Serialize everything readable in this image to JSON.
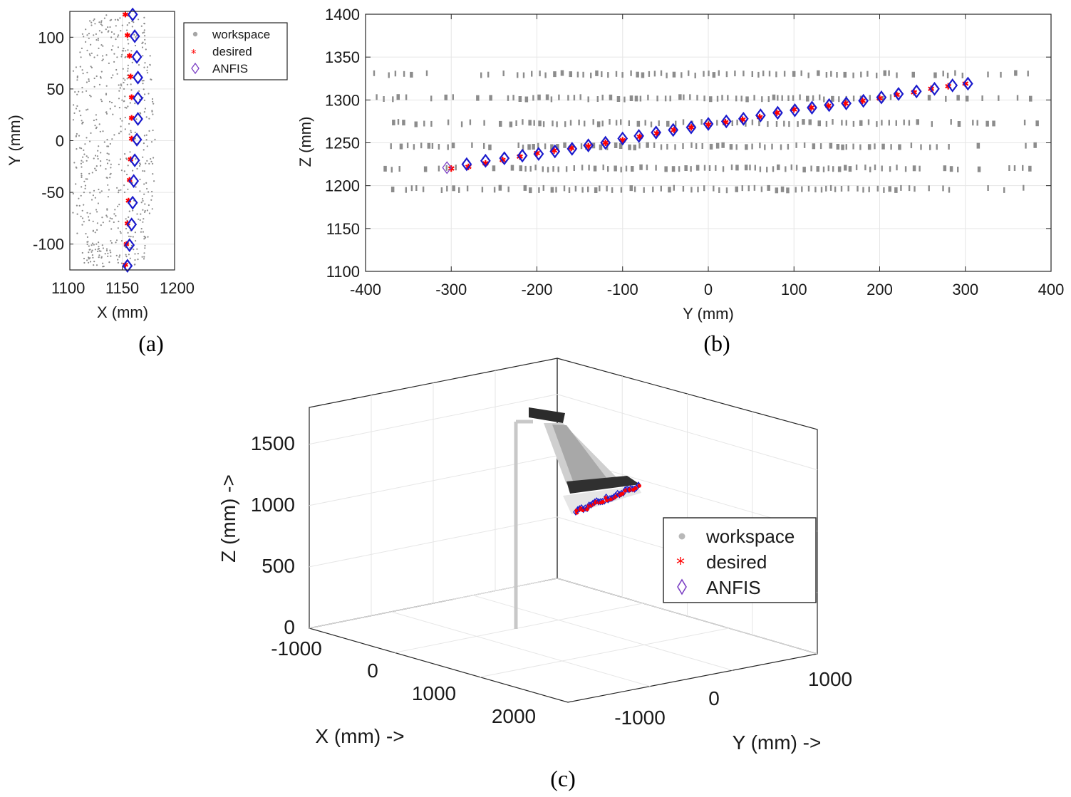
{
  "colors": {
    "workspace": "#8c8c8c",
    "desired": "#ff0000",
    "anfis": "#1a1acc",
    "anfis_legend": "#7b3fc4",
    "grid": "#e6e6e6",
    "axis": "#262626"
  },
  "legend": {
    "workspace": "workspace",
    "desired": "desired",
    "anfis": "ANFIS"
  },
  "chart_data": [
    {
      "id": "a",
      "type": "scatter",
      "caption": "(a)",
      "xlabel": "X (mm)",
      "ylabel": "Y (mm)",
      "xlim": [
        1100,
        1200
      ],
      "ylim": [
        -125,
        125
      ],
      "xticks": [
        1100,
        1150,
        1200
      ],
      "yticks": [
        -100,
        -50,
        0,
        50,
        100
      ],
      "grid": true,
      "legend_position": "outside-right",
      "series": [
        {
          "name": "workspace",
          "marker": "dot",
          "note": "scattered workspace points, x approx 1105-1195"
        },
        {
          "name": "desired",
          "marker": "asterisk",
          "x": [
            1153,
            1155,
            1157,
            1158,
            1159,
            1159,
            1159,
            1158,
            1157,
            1156,
            1155,
            1154,
            1153
          ],
          "y": [
            122,
            102,
            82,
            62,
            42,
            22,
            2,
            -18,
            -38,
            -58,
            -80,
            -100,
            -120
          ]
        },
        {
          "name": "ANFIS",
          "marker": "diamond",
          "x": [
            1160,
            1162,
            1164,
            1165,
            1165,
            1165,
            1164,
            1162,
            1161,
            1160,
            1159,
            1157,
            1155
          ],
          "y": [
            122,
            101,
            81,
            61,
            41,
            21,
            1,
            -19,
            -39,
            -60,
            -81,
            -101,
            -121
          ]
        }
      ]
    },
    {
      "id": "b",
      "type": "scatter",
      "caption": "(b)",
      "xlabel": "Y (mm)",
      "ylabel": "Z (mm)",
      "xlim": [
        -400,
        400
      ],
      "ylim": [
        1100,
        1400
      ],
      "xticks": [
        -400,
        -300,
        -200,
        -100,
        0,
        100,
        200,
        300,
        400
      ],
      "yticks": [
        1100,
        1150,
        1200,
        1250,
        1300,
        1350,
        1400
      ],
      "grid": true,
      "legend_position": "none",
      "series": [
        {
          "name": "workspace",
          "marker": "dash",
          "rows_z": [
            1330,
            1302,
            1273,
            1246,
            1220,
            1196
          ],
          "x_range": [
            -390,
            385
          ]
        },
        {
          "name": "desired",
          "marker": "asterisk",
          "x": [
            -300,
            -280,
            -260,
            -240,
            -220,
            -200,
            -180,
            -160,
            -140,
            -120,
            -100,
            -80,
            -60,
            -40,
            -20,
            0,
            20,
            40,
            60,
            80,
            100,
            120,
            140,
            160,
            180,
            200,
            220,
            240,
            260,
            280,
            300
          ],
          "y": [
            1220,
            1222,
            1226,
            1230,
            1234,
            1238,
            1241,
            1244,
            1246,
            1250,
            1253,
            1257,
            1261,
            1265,
            1268,
            1271,
            1274,
            1277,
            1280,
            1285,
            1289,
            1291,
            1293,
            1296,
            1299,
            1302,
            1306,
            1309,
            1313,
            1316,
            1319
          ]
        },
        {
          "name": "ANFIS",
          "marker": "diamond",
          "x": [
            -305,
            -282,
            -260,
            -238,
            -217,
            -198,
            -179,
            -159,
            -140,
            -120,
            -100,
            -81,
            -61,
            -41,
            -20,
            0,
            21,
            41,
            61,
            81,
            101,
            121,
            141,
            161,
            181,
            202,
            222,
            243,
            264,
            285,
            303
          ],
          "y": [
            1221,
            1225,
            1229,
            1232,
            1235,
            1237,
            1240,
            1243,
            1247,
            1250,
            1255,
            1258,
            1262,
            1265,
            1268,
            1272,
            1275,
            1278,
            1282,
            1285,
            1288,
            1291,
            1294,
            1296,
            1299,
            1303,
            1307,
            1310,
            1313,
            1317,
            1319
          ]
        }
      ]
    },
    {
      "id": "c",
      "type": "scatter3d",
      "caption": "(c)",
      "xlabel": "X (mm) ->",
      "ylabel": "Y (mm) ->",
      "zlabel": "Z (mm) ->",
      "xticks": [
        -1000,
        0,
        1000,
        2000
      ],
      "yticks": [
        -1000,
        0,
        1000
      ],
      "zticks": [
        0,
        500,
        1000,
        1500
      ],
      "legend_position": "right",
      "series": [
        "workspace",
        "desired",
        "ANFIS"
      ]
    }
  ]
}
